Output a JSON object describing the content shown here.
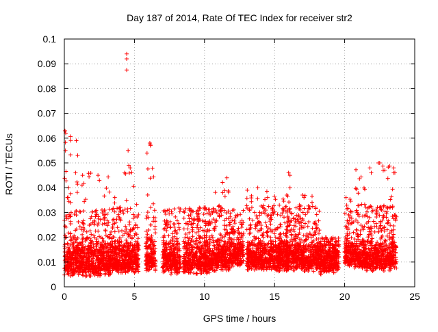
{
  "chart_data": {
    "type": "scatter",
    "title": "Day 187 of 2014, Rate Of TEC Index for receiver str2",
    "xlabel": "GPS time / hours",
    "ylabel": "ROTI / TECUs",
    "xlim": [
      0,
      25
    ],
    "ylim": [
      0,
      0.1
    ],
    "xticks": [
      0,
      5,
      10,
      15,
      20,
      25
    ],
    "yticks": [
      0,
      0.01,
      0.02,
      0.03,
      0.04,
      0.05,
      0.06,
      0.07,
      0.08,
      0.09,
      0.1
    ],
    "xtick_labels": [
      "0",
      "5",
      "10",
      "15",
      "20",
      "25"
    ],
    "ytick_labels": [
      "0",
      "0.01",
      "0.02",
      "0.03",
      "0.04",
      "0.05",
      "0.06",
      "0.07",
      "0.08",
      "0.09",
      "0.1"
    ],
    "grid": true,
    "marker": "plus",
    "color": "#ff0000",
    "clusters": [
      {
        "x": [
          0.0,
          1.0
        ],
        "y": [
          0.004,
          0.063
        ]
      },
      {
        "x": [
          1.0,
          2.2
        ],
        "y": [
          0.004,
          0.046
        ]
      },
      {
        "x": [
          2.2,
          3.3
        ],
        "y": [
          0.004,
          0.045
        ]
      },
      {
        "x": [
          3.3,
          4.3
        ],
        "y": [
          0.005,
          0.036
        ]
      },
      {
        "x": [
          4.3,
          5.3
        ],
        "y": [
          0.005,
          0.055
        ]
      },
      {
        "x": [
          5.8,
          6.5
        ],
        "y": [
          0.006,
          0.058
        ]
      },
      {
        "x": [
          7.0,
          8.3
        ],
        "y": [
          0.005,
          0.033
        ]
      },
      {
        "x": [
          8.5,
          10.5
        ],
        "y": [
          0.005,
          0.034
        ]
      },
      {
        "x": [
          10.5,
          11.8
        ],
        "y": [
          0.006,
          0.044
        ]
      },
      {
        "x": [
          11.8,
          12.8
        ],
        "y": [
          0.008,
          0.031
        ]
      },
      {
        "x": [
          13.0,
          14.5
        ],
        "y": [
          0.006,
          0.04
        ]
      },
      {
        "x": [
          14.5,
          16.0
        ],
        "y": [
          0.006,
          0.038
        ]
      },
      {
        "x": [
          15.8,
          16.5
        ],
        "y": [
          0.006,
          0.046
        ]
      },
      {
        "x": [
          16.5,
          18.2
        ],
        "y": [
          0.006,
          0.037
        ]
      },
      {
        "x": [
          18.2,
          19.6
        ],
        "y": [
          0.005,
          0.02
        ]
      },
      {
        "x": [
          20.0,
          20.7
        ],
        "y": [
          0.008,
          0.036
        ]
      },
      {
        "x": [
          20.7,
          21.5
        ],
        "y": [
          0.007,
          0.048
        ]
      },
      {
        "x": [
          21.5,
          22.5
        ],
        "y": [
          0.006,
          0.033
        ]
      },
      {
        "x": [
          22.5,
          23.7
        ],
        "y": [
          0.006,
          0.05
        ]
      }
    ],
    "highlights": [
      {
        "x": 4.45,
        "y": 0.094
      },
      {
        "x": 4.45,
        "y": 0.092
      },
      {
        "x": 4.45,
        "y": 0.0875
      },
      {
        "x": 4.55,
        "y": 0.055
      },
      {
        "x": 0.05,
        "y": 0.063
      },
      {
        "x": 0.1,
        "y": 0.062
      },
      {
        "x": 0.08,
        "y": 0.055
      },
      {
        "x": 6.1,
        "y": 0.058
      },
      {
        "x": 6.15,
        "y": 0.057
      },
      {
        "x": 11.6,
        "y": 0.044
      },
      {
        "x": 13.8,
        "y": 0.04
      },
      {
        "x": 16.0,
        "y": 0.046
      },
      {
        "x": 16.1,
        "y": 0.045
      },
      {
        "x": 16.1,
        "y": 0.04
      },
      {
        "x": 22.4,
        "y": 0.05
      },
      {
        "x": 22.5,
        "y": 0.05
      },
      {
        "x": 23.5,
        "y": 0.048
      },
      {
        "x": 23.5,
        "y": 0.046
      },
      {
        "x": 21.8,
        "y": 0.048
      },
      {
        "x": 21.9,
        "y": 0.046
      },
      {
        "x": 4.3,
        "y": 0.046
      },
      {
        "x": 4.6,
        "y": 0.049
      },
      {
        "x": 4.7,
        "y": 0.048
      },
      {
        "x": 0.8,
        "y": 0.046
      },
      {
        "x": 1.3,
        "y": 0.045
      },
      {
        "x": 2.4,
        "y": 0.045
      },
      {
        "x": 2.5,
        "y": 0.043
      },
      {
        "x": 11.3,
        "y": 0.038
      },
      {
        "x": 17.0,
        "y": 0.037
      },
      {
        "x": 17.1,
        "y": 0.036
      },
      {
        "x": 20.1,
        "y": 0.036
      },
      {
        "x": 0.3,
        "y": 0.04
      },
      {
        "x": 3.6,
        "y": 0.036
      },
      {
        "x": 12.1,
        "y": 0.031
      },
      {
        "x": 14.5,
        "y": 0.036
      }
    ]
  }
}
